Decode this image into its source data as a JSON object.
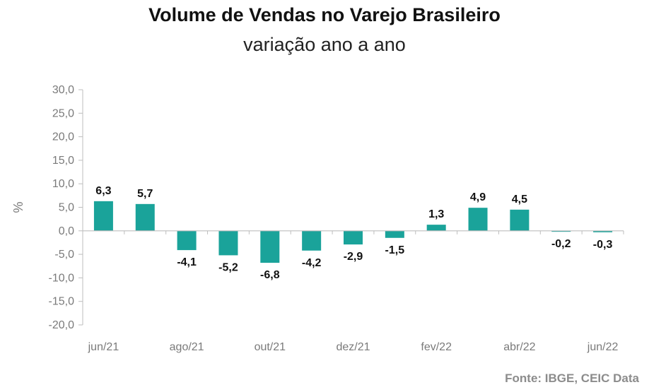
{
  "title": "Volume de Vendas no Varejo Brasileiro",
  "subtitle": "variação ano a ano",
  "source": "Fonte: IBGE, CEIC Data",
  "colors": {
    "bar": "#1aa39a",
    "axis": "#bdbdbd"
  },
  "chart_data": {
    "type": "bar",
    "title": "Volume de Vendas no Varejo Brasileiro",
    "subtitle": "variação ano a ano",
    "xlabel": "",
    "ylabel": "%",
    "ylim": [
      -20,
      30
    ],
    "yticks": [
      30,
      25,
      20,
      15,
      10,
      5,
      0,
      -5,
      -10,
      -15,
      -20
    ],
    "ytick_labels": [
      "30,0",
      "25,0",
      "20,0",
      "15,0",
      "10,0",
      "5,0",
      "0,0",
      "-5,0",
      "-10,0",
      "-15,0",
      "-20,0"
    ],
    "categories": [
      "jun/21",
      "jul/21",
      "ago/21",
      "set/21",
      "out/21",
      "nov/21",
      "dez/21",
      "jan/22",
      "fev/22",
      "mar/22",
      "abr/22",
      "mai/22",
      "jun/22"
    ],
    "xtick_labels": [
      "jun/21",
      "",
      "ago/21",
      "",
      "out/21",
      "",
      "dez/21",
      "",
      "fev/22",
      "",
      "abr/22",
      "",
      "jun/22"
    ],
    "values": [
      6.3,
      5.7,
      -4.1,
      -5.2,
      -6.8,
      -4.2,
      -2.9,
      -1.5,
      1.3,
      4.9,
      4.5,
      -0.2,
      -0.3
    ],
    "value_labels": [
      "6,3",
      "5,7",
      "-4,1",
      "-5,2",
      "-6,8",
      "-4,2",
      "-2,9",
      "-1,5",
      "1,3",
      "4,9",
      "4,5",
      "-0,2",
      "-0,3"
    ],
    "grid": false,
    "legend": "none"
  }
}
